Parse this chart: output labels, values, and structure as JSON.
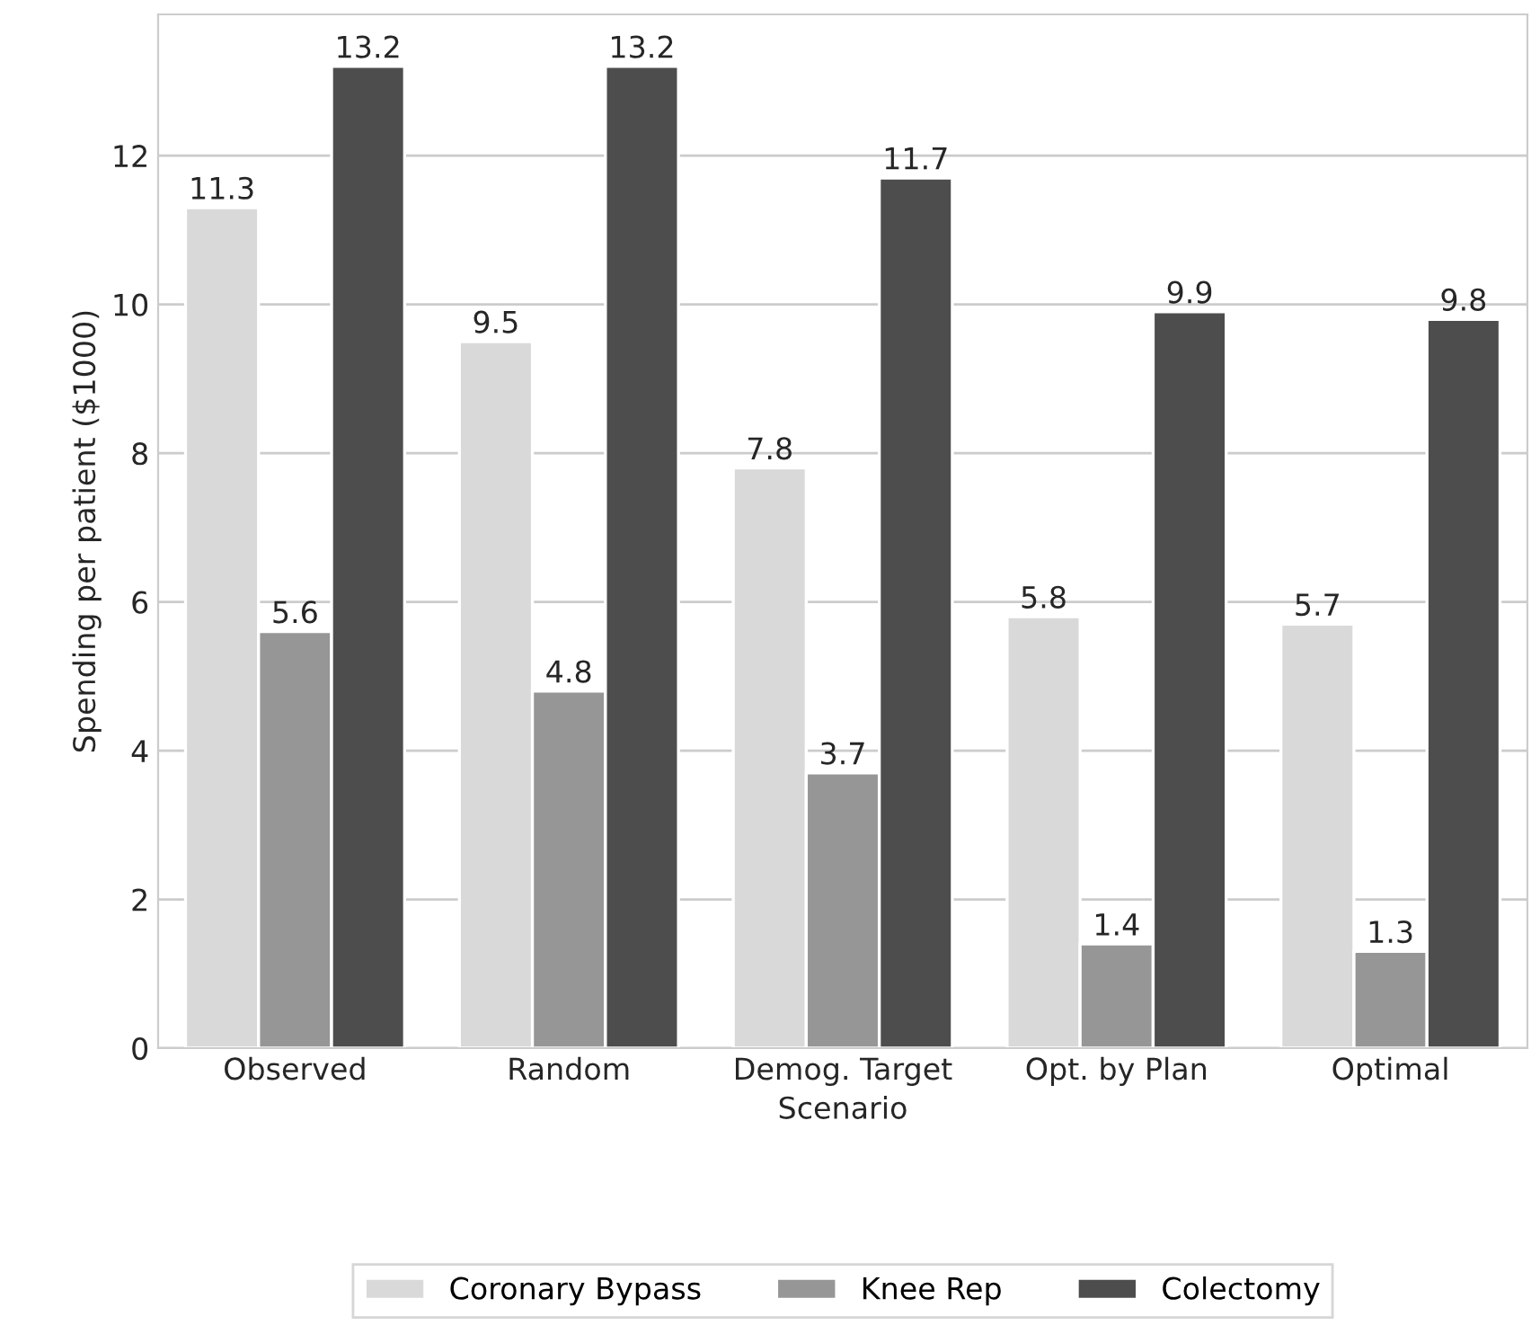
{
  "chart_data": {
    "type": "bar",
    "xlabel": "Scenario",
    "ylabel": "Spending per patient ($1000)",
    "categories": [
      "Observed",
      "Random",
      "Demog. Target",
      "Opt. by Plan",
      "Optimal"
    ],
    "series": [
      {
        "name": "Coronary Bypass",
        "color": "#d9d9d9",
        "values": [
          11.3,
          9.5,
          7.8,
          5.8,
          5.7
        ]
      },
      {
        "name": "Knee Rep",
        "color": "#969696",
        "values": [
          5.6,
          4.8,
          3.7,
          1.4,
          1.3
        ]
      },
      {
        "name": "Colectomy",
        "color": "#4d4d4d",
        "values": [
          13.2,
          13.2,
          11.7,
          9.9,
          9.8
        ]
      }
    ],
    "ylim": [
      0,
      13.9
    ],
    "yticks": [
      0,
      2,
      4,
      6,
      8,
      10,
      12
    ],
    "grid": "y",
    "legend": "bottom",
    "data_labels": true
  }
}
